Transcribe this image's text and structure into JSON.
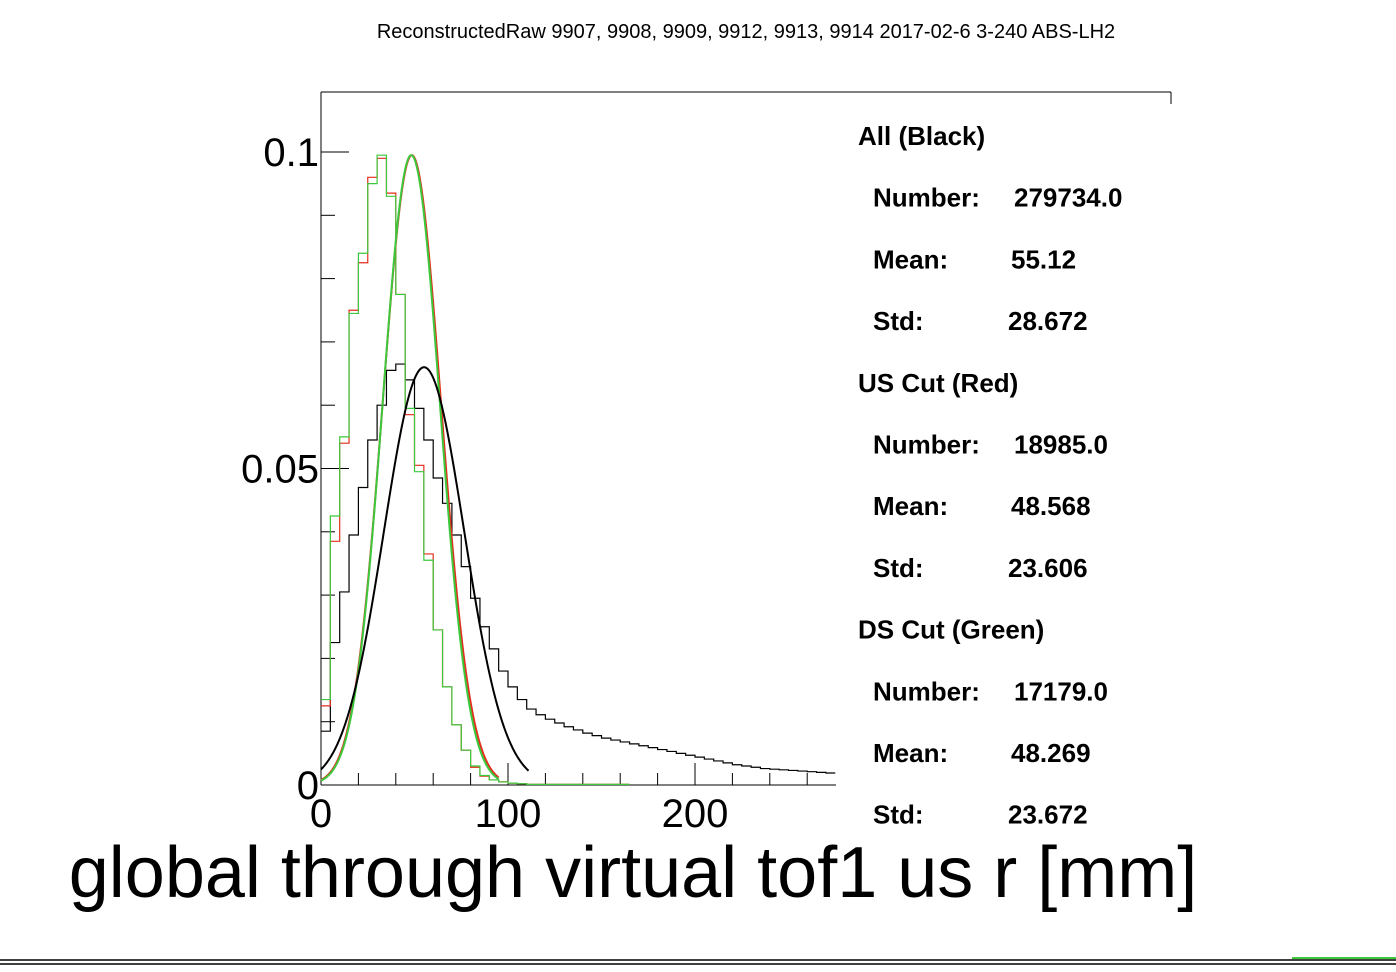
{
  "chart_data": {
    "type": "line",
    "title": "ReconstructedRaw 9907, 9908, 9909, 9912, 9913, 9914 2017-02-6 3-240 ABS-LH2",
    "xlabel": "global through virtual tof1 us r [mm]",
    "ylabel": "",
    "xlim": [
      0,
      275
    ],
    "ylim": [
      0,
      0.1
    ],
    "x_ticks": [
      "0",
      "100",
      "200"
    ],
    "y_ticks": [
      "0",
      "0.05",
      "0.1"
    ],
    "bin_width": 5,
    "series": [
      {
        "name": "All (Black)",
        "color": "#000000",
        "render": "step",
        "bin_start": 0,
        "values": [
          0.0085,
          0.0225,
          0.0305,
          0.0395,
          0.047,
          0.0545,
          0.06,
          0.0655,
          0.0665,
          0.064,
          0.0595,
          0.0545,
          0.0485,
          0.0445,
          0.0395,
          0.0345,
          0.0295,
          0.025,
          0.0215,
          0.018,
          0.0155,
          0.0135,
          0.012,
          0.0111,
          0.0104,
          0.0098,
          0.0092,
          0.0087,
          0.0082,
          0.0078,
          0.0074,
          0.0071,
          0.0068,
          0.0065,
          0.0062,
          0.0059,
          0.0056,
          0.0053,
          0.005,
          0.0047,
          0.0044,
          0.0041,
          0.0038,
          0.0035,
          0.0032,
          0.003,
          0.0028,
          0.0026,
          0.0025,
          0.0024,
          0.0023,
          0.0022,
          0.0021,
          0.002,
          0.0019
        ],
        "stats": {
          "number": "279734.0",
          "mean": "55.12",
          "std": "28.672"
        }
      },
      {
        "name": "US Cut (Red)",
        "color": "#e32d1c",
        "render": "step",
        "bin_start": 0,
        "values": [
          0.0125,
          0.0385,
          0.054,
          0.075,
          0.0825,
          0.096,
          0.099,
          0.0935,
          0.0775,
          0.0585,
          0.0505,
          0.0365,
          0.0245,
          0.0155,
          0.0095,
          0.0055,
          0.0028,
          0.0014,
          0.0008,
          0.0005,
          0.0003,
          0.0002,
          0.0001,
          0.0001,
          0.0001,
          0.0001,
          0.0001,
          0.0001,
          0.0001,
          0.0001,
          0.0001,
          0.0001,
          0.0001
        ],
        "fit": {
          "amplitude": 0.0995,
          "mean": 48.568,
          "sigma": 15.6,
          "x_range": [
            0,
            95
          ]
        },
        "stats": {
          "number": "18985.0",
          "mean": "48.568",
          "std": "23.606"
        }
      },
      {
        "name": "DS Cut (Green)",
        "color": "#3cc83c",
        "render": "step",
        "bin_start": 0,
        "values": [
          0.0135,
          0.0425,
          0.055,
          0.0745,
          0.084,
          0.095,
          0.0995,
          0.093,
          0.0775,
          0.0595,
          0.0495,
          0.0355,
          0.0245,
          0.0155,
          0.0095,
          0.0055,
          0.003,
          0.0015,
          0.0008,
          0.0005,
          0.0003,
          0.0002,
          0.0001,
          0.0001,
          0.0001,
          0.0001,
          0.0001,
          0.0001,
          0.0001,
          0.0001,
          0.0001,
          0.0001,
          0.0001
        ],
        "fit": {
          "amplitude": 0.0995,
          "mean": 48.269,
          "sigma": 15.3,
          "x_range": [
            0,
            95
          ]
        },
        "stats": {
          "number": "17179.0",
          "mean": "48.269",
          "std": "23.672"
        }
      },
      {
        "name": "All fit",
        "color": "#000000",
        "render": "fit-only",
        "fit": {
          "amplitude": 0.066,
          "mean": 55.12,
          "sigma": 21.5,
          "x_range": [
            0,
            111
          ]
        }
      }
    ]
  },
  "stats_box": {
    "groups": [
      {
        "heading": "All (Black)",
        "number_label": "Number:",
        "number": "279734.0",
        "mean_label": "Mean:",
        "mean": "55.12",
        "std_label": "Std:",
        "std": "28.672"
      },
      {
        "heading": "US Cut (Red)",
        "number_label": "Number:",
        "number": "18985.0",
        "mean_label": "Mean:",
        "mean": "48.568",
        "std_label": "Std:",
        "std": "23.606"
      },
      {
        "heading": "DS Cut (Green)",
        "number_label": "Number:",
        "number": "17179.0",
        "mean_label": "Mean:",
        "mean": "48.269",
        "std_label": "Std:",
        "std": "23.672"
      }
    ]
  }
}
